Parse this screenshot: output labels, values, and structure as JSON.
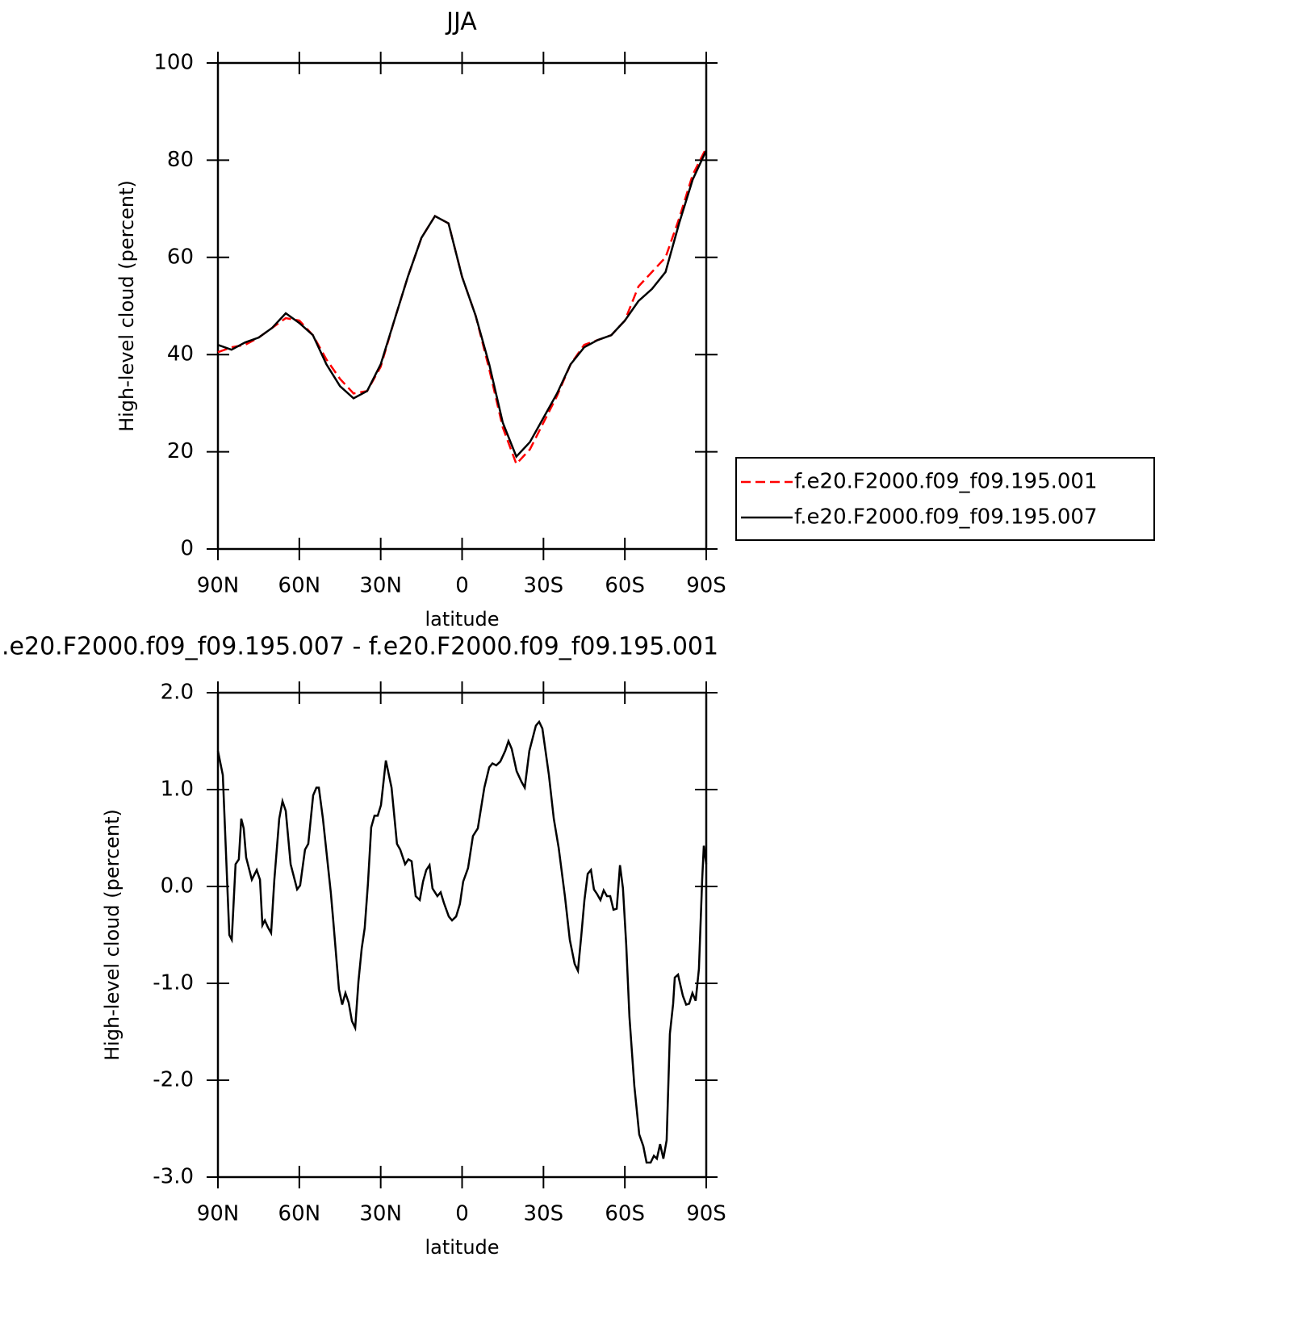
{
  "chart_data": [
    {
      "type": "line",
      "title": "JJA",
      "xlabel": "latitude",
      "ylabel": "High-level cloud (percent)",
      "x": [
        90,
        85,
        80,
        75,
        70,
        65,
        60,
        55,
        50,
        45,
        40,
        35,
        30,
        25,
        20,
        15,
        10,
        5,
        0,
        -5,
        -10,
        -15,
        -20,
        -25,
        -30,
        -35,
        -40,
        -45,
        -50,
        -55,
        -60,
        -65,
        -70,
        -75,
        -80,
        -85,
        -90
      ],
      "series": [
        {
          "name": "f.e20.F2000.f09_f09.195.001",
          "color": "#ff0000",
          "dashed": true,
          "values": [
            40.5,
            41.5,
            42,
            43.5,
            45.5,
            47.5,
            47,
            44,
            39,
            35,
            32,
            32.5,
            37.5,
            47,
            56,
            64,
            68.5,
            67,
            56,
            48,
            37,
            25,
            17.5,
            20.5,
            26,
            31.5,
            38,
            42,
            43,
            44,
            47,
            54,
            57,
            60,
            68,
            77,
            82.5
          ]
        },
        {
          "name": "f.e20.F2000.f09_f09.195.007",
          "color": "#000000",
          "dashed": false,
          "values": [
            42,
            41,
            42.5,
            43.5,
            45.5,
            48.5,
            46.5,
            44,
            38,
            33.5,
            31,
            32.5,
            38,
            47,
            56,
            64,
            68.5,
            67,
            56,
            48,
            38,
            26,
            19,
            22,
            27,
            32,
            38,
            41.5,
            43,
            44,
            47,
            51,
            53.5,
            57,
            67,
            76,
            82
          ]
        }
      ],
      "xlim": [
        90,
        -90
      ],
      "xticks": [
        {
          "value": 90,
          "label": "90N"
        },
        {
          "value": 60,
          "label": "60N"
        },
        {
          "value": 30,
          "label": "30N"
        },
        0,
        {
          "value": -30,
          "label": "30S"
        },
        {
          "value": -60,
          "label": "60S"
        },
        {
          "value": -90,
          "label": "90S"
        }
      ],
      "ylim": [
        0,
        100
      ],
      "yticks": [
        0,
        20,
        40,
        60,
        80,
        100
      ],
      "legend": "right"
    },
    {
      "type": "line",
      "title": ".e20.F2000.f09_f09.195.007 - f.e20.F2000.f09_f09.195.001",
      "xlabel": "latitude",
      "ylabel": "High-level cloud (percent)",
      "x": [
        90,
        88.2,
        85.8,
        84.9,
        83.5,
        82.3,
        81.4,
        80.5,
        79.6,
        77.5,
        75.7,
        74.5,
        73.6,
        72.7,
        71.6,
        70.4,
        69.2,
        67.4,
        66.2,
        65.0,
        63.2,
        60.8,
        59.7,
        57.9,
        56.7,
        54.9,
        53.7,
        52.8,
        51.3,
        48.4,
        47.5,
        45.4,
        44.2,
        43.0,
        41.8,
        40.6,
        39.4,
        38.2,
        37.0,
        35.9,
        34.7,
        33.5,
        32.3,
        31.1,
        29.9,
        28.1,
        26.0,
        24.0,
        22.8,
        21.0,
        19.8,
        18.6,
        17.1,
        15.6,
        14.4,
        13.2,
        12.0,
        10.9,
        9.1,
        7.9,
        6.7,
        4.9,
        3.7,
        2.2,
        0.8,
        -0.4,
        -2.2,
        -4.0,
        -5.8,
        -8.2,
        -10.0,
        -11.2,
        -12.6,
        -14.1,
        -15.9,
        -17.1,
        -18.3,
        -20.1,
        -21.9,
        -23.1,
        -24.8,
        -27.2,
        -28.4,
        -29.6,
        -32.0,
        -33.8,
        -35.6,
        -37.9,
        -39.7,
        -41.5,
        -42.7,
        -43.9,
        -45.1,
        -46.3,
        -47.5,
        -48.6,
        -49.8,
        -51.0,
        -52.2,
        -53.4,
        -54.6,
        -55.8,
        -57.0,
        -58.2,
        -59.3,
        -60.5,
        -61.7,
        -63.5,
        -65.3,
        -66.8,
        -68.0,
        -69.5,
        -70.7,
        -71.8,
        -73.0,
        -74.2,
        -75.4,
        -76.6,
        -77.8,
        -78.4,
        -79.6,
        -81.4,
        -82.6,
        -83.7,
        -84.9,
        -86.1,
        -87.3,
        -88.5,
        -89.1,
        -90
      ],
      "series": [
        {
          "color": "#000000",
          "dashed": false,
          "values": [
            1.4,
            1.15,
            -0.5,
            -0.55,
            0.23,
            0.28,
            0.7,
            0.6,
            0.3,
            0.07,
            0.17,
            0.07,
            -0.4,
            -0.35,
            -0.42,
            -0.48,
            0.07,
            0.7,
            0.88,
            0.78,
            0.23,
            -0.03,
            0.01,
            0.38,
            0.44,
            0.94,
            1.02,
            1.02,
            0.7,
            -0.06,
            -0.35,
            -1.06,
            -1.22,
            -1.1,
            -1.2,
            -1.39,
            -1.46,
            -0.98,
            -0.64,
            -0.43,
            0.03,
            0.61,
            0.73,
            0.73,
            0.84,
            1.3,
            1.02,
            0.44,
            0.38,
            0.23,
            0.28,
            0.26,
            -0.1,
            -0.14,
            0.05,
            0.17,
            0.22,
            -0.02,
            -0.1,
            -0.06,
            -0.17,
            -0.31,
            -0.35,
            -0.31,
            -0.18,
            0.05,
            0.19,
            0.52,
            0.6,
            1.02,
            1.23,
            1.27,
            1.25,
            1.29,
            1.4,
            1.5,
            1.42,
            1.19,
            1.08,
            1.02,
            1.4,
            1.66,
            1.7,
            1.63,
            1.15,
            0.7,
            0.4,
            -0.1,
            -0.55,
            -0.8,
            -0.87,
            -0.52,
            -0.14,
            0.13,
            0.17,
            -0.03,
            -0.08,
            -0.14,
            -0.04,
            -0.1,
            -0.1,
            -0.24,
            -0.23,
            0.22,
            -0.02,
            -0.6,
            -1.35,
            -2.06,
            -2.56,
            -2.68,
            -2.85,
            -2.85,
            -2.78,
            -2.81,
            -2.66,
            -2.81,
            -2.62,
            -1.52,
            -1.21,
            -0.94,
            -0.91,
            -1.13,
            -1.22,
            -1.21,
            -1.1,
            -1.18,
            -0.85,
            0.07,
            0.42,
            0.23
          ]
        }
      ],
      "xlim": [
        90,
        -90
      ],
      "xticks": [
        {
          "value": 90,
          "label": "90N"
        },
        {
          "value": 60,
          "label": "60N"
        },
        {
          "value": 30,
          "label": "30N"
        },
        0,
        {
          "value": -30,
          "label": "30S"
        },
        {
          "value": -60,
          "label": "60S"
        },
        {
          "value": -90,
          "label": "90S"
        }
      ],
      "ylim": [
        -3,
        2
      ],
      "yticks": [
        {
          "value": -3,
          "label": "-3.0"
        },
        {
          "value": -2,
          "label": "-2.0"
        },
        {
          "value": -1,
          "label": "-1.0"
        },
        {
          "value": 0,
          "label": "0.0"
        },
        {
          "value": 1,
          "label": "1.0"
        },
        {
          "value": 2,
          "label": "2.0"
        }
      ]
    }
  ]
}
